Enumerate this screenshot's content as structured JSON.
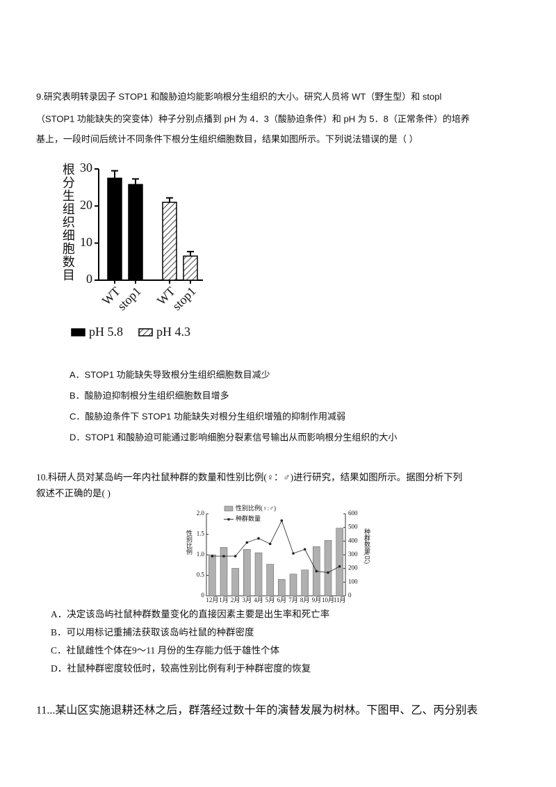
{
  "questions": [
    {
      "lines": [
        "9.研究表明转录因子 STOP1 和酸胁迫均能影响根分生组织的大小。研究人员将 WT（野生型）和 stopl",
        "（STOP1 功能缺失的突变体）种子分别点播到 pH 为 4．3（酸胁迫条件）和 pH 为 5．8（正常条件）的培养",
        "基上，一段时间后统计不同条件下根分生组织细胞数目，结果如图所示。下列说法错误的是（    ）"
      ],
      "chart": {
        "type": "bar",
        "y_label": "根分生组织细胞数目",
        "categories": [
          "WT",
          "stop1",
          "WT",
          "stop1"
        ],
        "series": [
          {
            "name": "pH 5.8",
            "color": "#000000",
            "hatched": false,
            "values": [
              27.5,
              25.8,
              null,
              null
            ],
            "errors": [
              2,
              1.5,
              null,
              null
            ]
          },
          {
            "name": "pH 4.3",
            "color": "#000000",
            "hatched": true,
            "values": [
              null,
              null,
              21,
              6.5
            ],
            "errors": [
              null,
              null,
              1.2,
              1.2
            ]
          }
        ],
        "ylim": [
          0,
          30
        ],
        "yticks": [
          0,
          10,
          20,
          30
        ]
      },
      "options": [
        "A．STOP1 功能缺失导致根分生组织细胞数目减少",
        "B．酸胁迫抑制根分生组织细胞数目增多",
        "C．酸胁迫条件下 STOP1 功能缺失对根分生组织增殖的抑制作用减弱",
        "D．STOP1 和酸胁迫可能通过影响细胞分裂素信号输出从而影响根分生组织的大小"
      ]
    },
    {
      "lines": [
        "10.科研人员对某岛屿一年内社鼠种群的数量和性别比例(♀：♂)进行研究，结果如图所示。据图分析下列",
        "叙述不正确的是(        )"
      ],
      "chart": {
        "type": "bar-line",
        "y_label": "性别比例",
        "y2_label": "种群数量(只)",
        "categories": [
          "12月",
          "1月",
          "2月",
          "3月",
          "4月",
          "5月",
          "6月",
          "7月",
          "8月",
          "9月",
          "10月",
          "11月"
        ],
        "series": [
          {
            "name": "性别比例(♀:♂)",
            "type": "bar",
            "color": "#b0b0b0",
            "values": [
              1.0,
              1.18,
              0.67,
              1.13,
              1.05,
              0.77,
              0.4,
              0.53,
              0.63,
              1.2,
              1.35,
              1.65
            ]
          },
          {
            "name": "种群数量",
            "type": "line",
            "axis": "y2",
            "color": "#222222",
            "values": [
              290,
              290,
              290,
              390,
              420,
              380,
              550,
              310,
              340,
              180,
              170,
              215
            ]
          }
        ],
        "ylim": [
          0,
          2
        ],
        "yticks": [
          0,
          0.5,
          {
            "value": 1,
            "label": "1.0"
          },
          1.5,
          {
            "value": 2,
            "label": "2.0"
          }
        ],
        "y2lim": [
          0,
          600
        ],
        "y2ticks": [
          0,
          100,
          200,
          300,
          400,
          500,
          600
        ]
      },
      "options": [
        "A．决定该岛屿社鼠种群数量变化的直接因素主要是出生率和死亡率",
        "B．可以用标记重捕法获取该岛屿社鼠的种群密度",
        "C．社鼠雌性个体在9～11 月份的生存能力低于雄性个体",
        "D．社鼠种群密度较低时，较高性别比例有利于种群密度的恢复"
      ]
    },
    {
      "lines": [
        "11...某山区实施退耕还林之后，群落经过数十年的演替发展为树林。下图甲、乙、丙分别表"
      ]
    }
  ]
}
